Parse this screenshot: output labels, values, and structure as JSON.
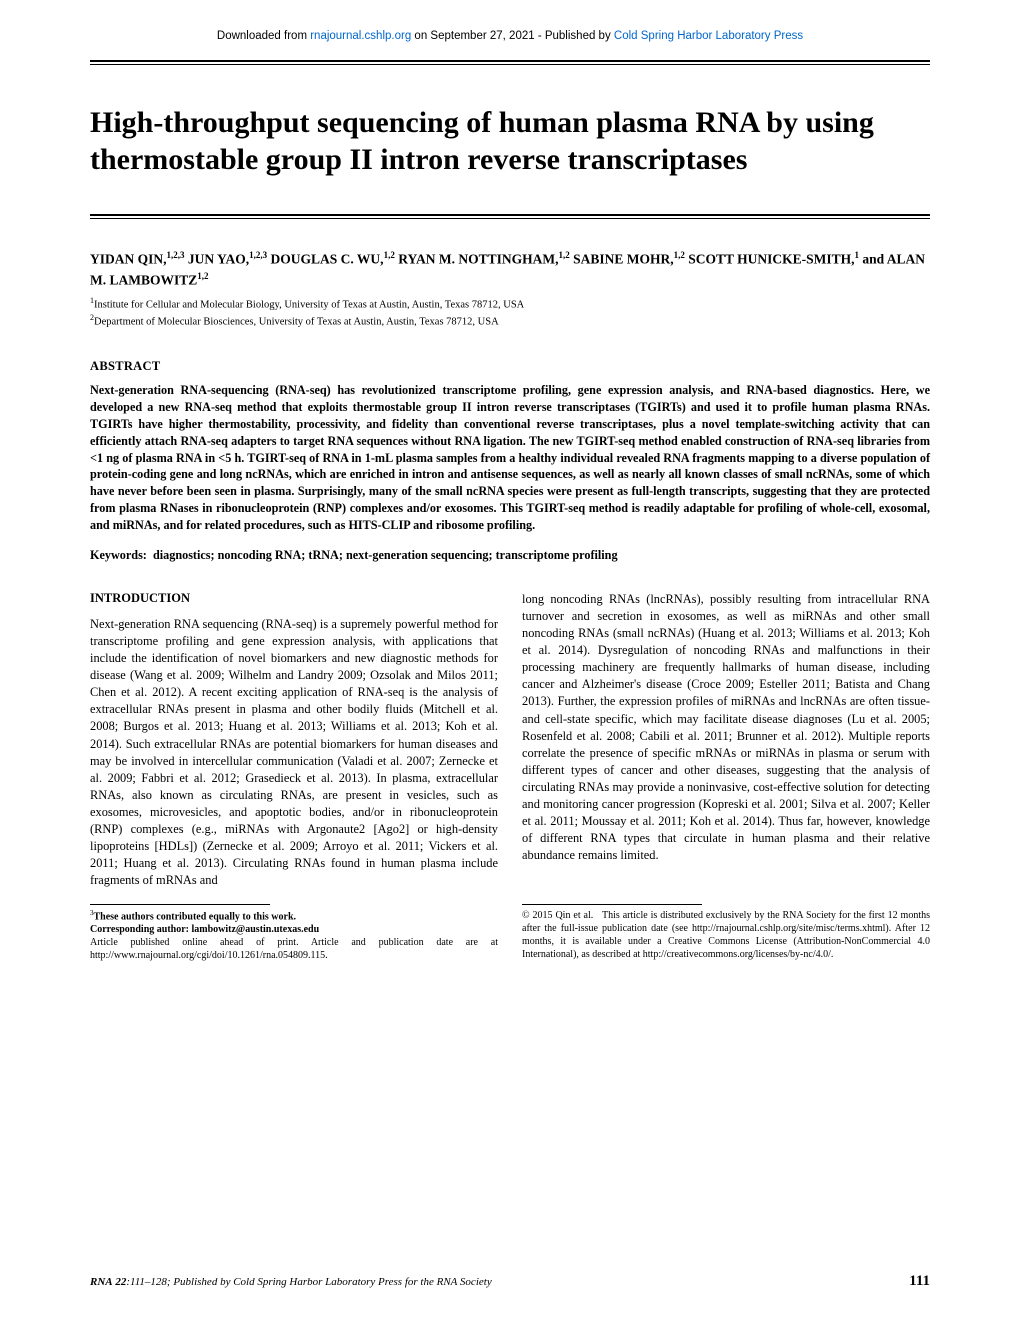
{
  "download_bar": {
    "prefix": "Downloaded from ",
    "link1": "rnajournal.cshlp.org",
    "mid": " on September 27, 2021 - Published by ",
    "link2": "Cold Spring Harbor Laboratory Press"
  },
  "title": "High-throughput sequencing of human plasma RNA by using thermostable group II intron reverse transcriptases",
  "authors_html": "YIDAN QIN,<sup>1,2,3</sup> JUN YAO,<sup>1,2,3</sup> DOUGLAS C. WU,<sup>1,2</sup> RYAN M. NOTTINGHAM,<sup>1,2</sup> SABINE MOHR,<sup>1,2</sup> SCOTT HUNICKE-SMITH,<sup>1</sup> and ALAN M. LAMBOWITZ<sup>1,2</sup>",
  "affiliations": [
    "<sup>1</sup>Institute for Cellular and Molecular Biology, University of Texas at Austin, Austin, Texas 78712, USA",
    "<sup>2</sup>Department of Molecular Biosciences, University of Texas at Austin, Austin, Texas 78712, USA"
  ],
  "abstract_head": "ABSTRACT",
  "abstract": "Next-generation RNA-sequencing (RNA-seq) has revolutionized transcriptome profiling, gene expression analysis, and RNA-based diagnostics. Here, we developed a new RNA-seq method that exploits thermostable group II intron reverse transcriptases (TGIRTs) and used it to profile human plasma RNAs. TGIRTs have higher thermostability, processivity, and fidelity than conventional reverse transcriptases, plus a novel template-switching activity that can efficiently attach RNA-seq adapters to target RNA sequences without RNA ligation. The new TGIRT-seq method enabled construction of RNA-seq libraries from <1 ng of plasma RNA in <5 h. TGIRT-seq of RNA in 1-mL plasma samples from a healthy individual revealed RNA fragments mapping to a diverse population of protein-coding gene and long ncRNAs, which are enriched in intron and antisense sequences, as well as nearly all known classes of small ncRNAs, some of which have never before been seen in plasma. Surprisingly, many of the small ncRNA species were present as full-length transcripts, suggesting that they are protected from plasma RNases in ribonucleoprotein (RNP) complexes and/or exosomes. This TGIRT-seq method is readily adaptable for profiling of whole-cell, exosomal, and miRNAs, and for related procedures, such as HITS-CLIP and ribosome profiling.",
  "keywords_label": "Keywords:",
  "keywords": "diagnostics; noncoding RNA; tRNA; next-generation sequencing; transcriptome profiling",
  "intro_head": "INTRODUCTION",
  "intro_left": "Next-generation RNA sequencing (RNA-seq) is a supremely powerful method for transcriptome profiling and gene expression analysis, with applications that include the identification of novel biomarkers and new diagnostic methods for disease (Wang et al. 2009; Wilhelm and Landry 2009; Ozsolak and Milos 2011; Chen et al. 2012). A recent exciting application of RNA-seq is the analysis of extracellular RNAs present in plasma and other bodily fluids (Mitchell et al. 2008; Burgos et al. 2013; Huang et al. 2013; Williams et al. 2013; Koh et al. 2014). Such extracellular RNAs are potential biomarkers for human diseases and may be involved in intercellular communication (Valadi et al. 2007; Zernecke et al. 2009; Fabbri et al. 2012; Grasedieck et al. 2013). In plasma, extracellular RNAs, also known as circulating RNAs, are present in vesicles, such as exosomes, microvesicles, and apoptotic bodies, and/or in ribonucleoprotein (RNP) complexes (e.g., miRNAs with Argonaute2 [Ago2] or high-density lipoproteins [HDLs]) (Zernecke et al. 2009; Arroyo et al. 2011; Vickers et al. 2011; Huang et al. 2013). Circulating RNAs found in human plasma include fragments of mRNAs and",
  "intro_right": "long noncoding RNAs (lncRNAs), possibly resulting from intracellular RNA turnover and secretion in exosomes, as well as miRNAs and other small noncoding RNAs (small ncRNAs) (Huang et al. 2013; Williams et al. 2013; Koh et al. 2014). Dysregulation of noncoding RNAs and malfunctions in their processing machinery are frequently hallmarks of human disease, including cancer and Alzheimer's disease (Croce 2009; Esteller 2011; Batista and Chang 2013). Further, the expression profiles of miRNAs and lncRNAs are often tissue- and cell-state specific, which may facilitate disease diagnoses (Lu et al. 2005; Rosenfeld et al. 2008; Cabili et al. 2011; Brunner et al. 2012). Multiple reports correlate the presence of specific mRNAs or miRNAs in plasma or serum with different types of cancer and other diseases, suggesting that the analysis of circulating RNAs may provide a noninvasive, cost-effective solution for detecting and monitoring cancer progression (Kopreski et al. 2001; Silva et al. 2007; Keller et al. 2011; Moussay et al. 2011; Koh et al. 2014). Thus far, however, knowledge of different RNA types that circulate in human plasma and their relative abundance remains limited.",
  "footnote_left": "<sup>3</sup><b>These authors contributed equally to this work.</b><br><b>Corresponding author: lambowitz@austin.utexas.edu</b><br>Article published online ahead of print. Article and publication date are at http://www.rnajournal.org/cgi/doi/10.1261/rna.054809.115.",
  "footnote_right": "© 2015 Qin et al. &nbsp;&nbsp;This article is distributed exclusively by the RNA Society for the first 12 months after the full-issue publication date (see http://rnajournal.cshlp.org/site/misc/terms.xhtml). After 12 months, it is available under a Creative Commons License (Attribution-NonCommercial 4.0 International), as described at http://creativecommons.org/licenses/by-nc/4.0/.",
  "footer_cite": "RNA 22:111–128; Published by Cold Spring Harbor Laboratory Press for the RNA Society",
  "footer_page": "111"
}
